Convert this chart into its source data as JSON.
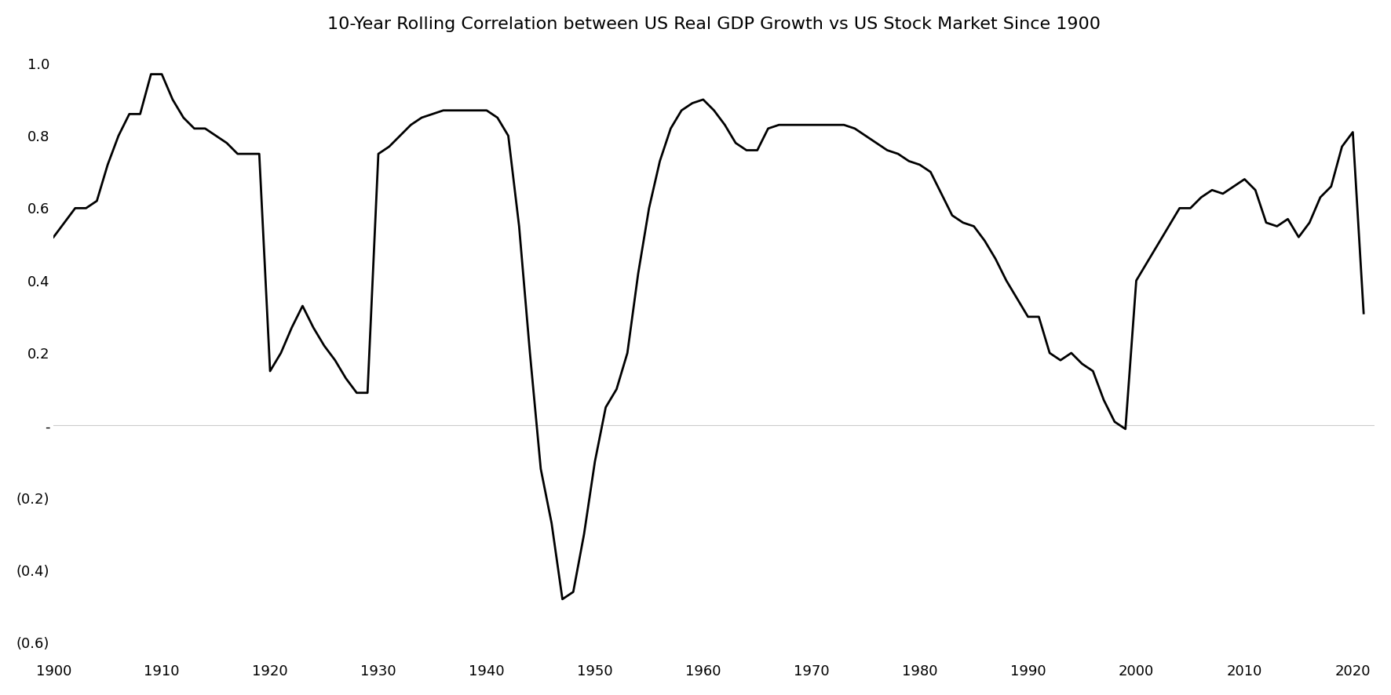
{
  "title": "10-Year Rolling Correlation between US Real GDP Growth vs US Stock Market Since 1900",
  "xlim": [
    1900,
    2022
  ],
  "ylim": [
    -0.65,
    1.05
  ],
  "xticks": [
    1900,
    1910,
    1920,
    1930,
    1940,
    1950,
    1960,
    1970,
    1980,
    1990,
    2000,
    2010,
    2020
  ],
  "yticks": [
    -0.6,
    -0.4,
    -0.2,
    0.0,
    0.2,
    0.4,
    0.6,
    0.8,
    1.0
  ],
  "ytick_labels": [
    "(0.6)",
    "(0.4)",
    "(0.2)",
    "-",
    "0.2",
    "0.4",
    "0.6",
    "0.8",
    "1.0"
  ],
  "line_color": "#000000",
  "line_width": 2.0,
  "background_color": "#ffffff",
  "title_fontsize": 16,
  "tick_fontsize": 13,
  "years": [
    1900,
    1901,
    1902,
    1903,
    1904,
    1905,
    1906,
    1907,
    1908,
    1909,
    1910,
    1911,
    1912,
    1913,
    1914,
    1915,
    1916,
    1917,
    1918,
    1919,
    1920,
    1921,
    1922,
    1923,
    1924,
    1925,
    1926,
    1927,
    1928,
    1929,
    1930,
    1931,
    1932,
    1933,
    1934,
    1935,
    1936,
    1937,
    1938,
    1939,
    1940,
    1941,
    1942,
    1943,
    1944,
    1945,
    1946,
    1947,
    1948,
    1949,
    1950,
    1951,
    1952,
    1953,
    1954,
    1955,
    1956,
    1957,
    1958,
    1959,
    1960,
    1961,
    1962,
    1963,
    1964,
    1965,
    1966,
    1967,
    1968,
    1969,
    1970,
    1971,
    1972,
    1973,
    1974,
    1975,
    1976,
    1977,
    1978,
    1979,
    1980,
    1981,
    1982,
    1983,
    1984,
    1985,
    1986,
    1987,
    1988,
    1989,
    1990,
    1991,
    1992,
    1993,
    1994,
    1995,
    1996,
    1997,
    1998,
    1999,
    2000,
    2001,
    2002,
    2003,
    2004,
    2005,
    2006,
    2007,
    2008,
    2009,
    2010,
    2011,
    2012,
    2013,
    2014,
    2015,
    2016,
    2017,
    2018,
    2019,
    2020,
    2021
  ],
  "values": [
    0.52,
    0.56,
    0.6,
    0.6,
    0.62,
    0.72,
    0.8,
    0.86,
    0.86,
    0.97,
    0.97,
    0.9,
    0.85,
    0.82,
    0.82,
    0.8,
    0.78,
    0.75,
    0.75,
    0.75,
    0.15,
    0.2,
    0.27,
    0.33,
    0.27,
    0.22,
    0.18,
    0.13,
    0.09,
    0.09,
    0.75,
    0.77,
    0.8,
    0.83,
    0.85,
    0.86,
    0.87,
    0.87,
    0.87,
    0.87,
    0.87,
    0.85,
    0.8,
    0.55,
    0.2,
    -0.12,
    -0.27,
    -0.48,
    -0.46,
    -0.3,
    -0.1,
    0.05,
    0.1,
    0.2,
    0.42,
    0.6,
    0.73,
    0.82,
    0.87,
    0.89,
    0.9,
    0.87,
    0.83,
    0.78,
    0.76,
    0.76,
    0.82,
    0.83,
    0.83,
    0.83,
    0.83,
    0.83,
    0.83,
    0.83,
    0.82,
    0.8,
    0.78,
    0.76,
    0.75,
    0.73,
    0.72,
    0.7,
    0.64,
    0.58,
    0.56,
    0.55,
    0.51,
    0.46,
    0.4,
    0.35,
    0.3,
    0.3,
    0.2,
    0.18,
    0.2,
    0.17,
    0.15,
    0.07,
    0.01,
    -0.01,
    0.4,
    0.45,
    0.5,
    0.55,
    0.6,
    0.6,
    0.63,
    0.65,
    0.64,
    0.66,
    0.68,
    0.65,
    0.56,
    0.55,
    0.57,
    0.52,
    0.56,
    0.63,
    0.66,
    0.77,
    0.81,
    0.31
  ]
}
